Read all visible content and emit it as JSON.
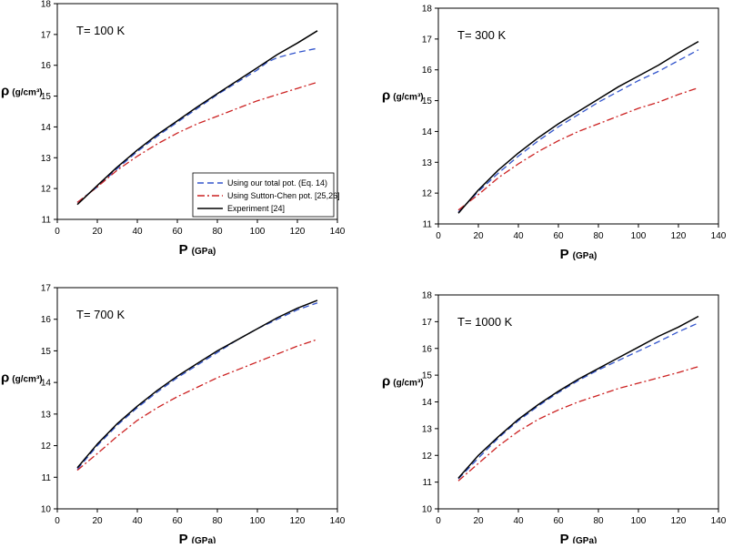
{
  "figure": {
    "legend": {
      "entries": [
        {
          "label": "Using our total pot. (Eq. 14)",
          "series": "ours"
        },
        {
          "label": "Using Sutton-Chen pot. [25,26]",
          "series": "sc"
        },
        {
          "label": "Experiment [24]",
          "series": "exp"
        }
      ]
    },
    "styles": {
      "ours": {
        "color": "#3355cc",
        "dash": "7,4"
      },
      "sc": {
        "color": "#cc2222",
        "dash": "8,3,2,3"
      },
      "exp": {
        "color": "#000000",
        "dash": ""
      }
    }
  },
  "chart_data": [
    {
      "type": "line",
      "panel_label": "T= 100 K",
      "xlabel": "P",
      "xlabel_unit": "(GPa)",
      "ylabel": "ρ",
      "ylabel_unit": "(g/cm³)",
      "xlim": [
        0,
        140
      ],
      "ylim": [
        11,
        18
      ],
      "xticks": [
        0,
        20,
        40,
        60,
        80,
        100,
        120,
        140
      ],
      "yticks": [
        11,
        12,
        13,
        14,
        15,
        16,
        17,
        18
      ],
      "has_legend": true,
      "series": [
        {
          "key": "ours",
          "name": "Using our total pot. (Eq. 14)",
          "x": [
            10,
            20,
            30,
            40,
            50,
            60,
            70,
            80,
            90,
            100,
            105,
            110,
            120,
            130
          ],
          "y": [
            11.55,
            12.05,
            12.65,
            13.2,
            13.7,
            14.15,
            14.6,
            15.05,
            15.45,
            15.85,
            16.1,
            16.25,
            16.42,
            16.55
          ]
        },
        {
          "key": "sc",
          "name": "Using Sutton-Chen pot. [25,26]",
          "x": [
            10,
            20,
            30,
            40,
            50,
            60,
            70,
            80,
            90,
            100,
            110,
            120,
            130
          ],
          "y": [
            11.55,
            12.05,
            12.6,
            13.05,
            13.45,
            13.8,
            14.1,
            14.35,
            14.6,
            14.85,
            15.05,
            15.25,
            15.45
          ]
        },
        {
          "key": "exp",
          "name": "Experiment [24]",
          "x": [
            10,
            20,
            30,
            40,
            50,
            60,
            70,
            80,
            90,
            100,
            110,
            120,
            130
          ],
          "y": [
            11.48,
            12.1,
            12.7,
            13.25,
            13.75,
            14.2,
            14.65,
            15.08,
            15.5,
            15.92,
            16.35,
            16.72,
            17.12
          ]
        }
      ]
    },
    {
      "type": "line",
      "panel_label": "T= 300 K",
      "xlabel": "P",
      "xlabel_unit": "(GPa)",
      "ylabel": "ρ",
      "ylabel_unit": "(g/cm³)",
      "xlim": [
        0,
        140
      ],
      "ylim": [
        11,
        18
      ],
      "xticks": [
        0,
        20,
        40,
        60,
        80,
        100,
        120,
        140
      ],
      "yticks": [
        11,
        12,
        13,
        14,
        15,
        16,
        17,
        18
      ],
      "has_legend": false,
      "series": [
        {
          "key": "ours",
          "name": "Using our total pot. (Eq. 14)",
          "x": [
            10,
            20,
            30,
            40,
            50,
            60,
            70,
            80,
            90,
            100,
            110,
            120,
            130
          ],
          "y": [
            11.38,
            12.05,
            12.65,
            13.2,
            13.7,
            14.15,
            14.55,
            14.95,
            15.3,
            15.65,
            15.95,
            16.3,
            16.65
          ]
        },
        {
          "key": "sc",
          "name": "Using Sutton-Chen pot. [25,26]",
          "x": [
            10,
            20,
            30,
            40,
            50,
            60,
            70,
            80,
            90,
            100,
            110,
            120,
            130
          ],
          "y": [
            11.45,
            11.95,
            12.5,
            12.95,
            13.35,
            13.7,
            14.0,
            14.25,
            14.5,
            14.75,
            14.95,
            15.2,
            15.42
          ]
        },
        {
          "key": "exp",
          "name": "Experiment [24]",
          "x": [
            10,
            20,
            30,
            40,
            50,
            60,
            70,
            80,
            90,
            100,
            110,
            120,
            130
          ],
          "y": [
            11.35,
            12.1,
            12.75,
            13.3,
            13.8,
            14.25,
            14.65,
            15.05,
            15.45,
            15.8,
            16.15,
            16.55,
            16.92
          ]
        }
      ]
    },
    {
      "type": "line",
      "panel_label": "T= 700 K",
      "xlabel": "P",
      "xlabel_unit": "(GPa)",
      "ylabel": "ρ",
      "ylabel_unit": "(g/cm³)",
      "xlim": [
        0,
        140
      ],
      "ylim": [
        10,
        17
      ],
      "xticks": [
        0,
        20,
        40,
        60,
        80,
        100,
        120,
        140
      ],
      "yticks": [
        10,
        11,
        12,
        13,
        14,
        15,
        16,
        17
      ],
      "has_legend": false,
      "series": [
        {
          "key": "ours",
          "name": "Using our total pot. (Eq. 14)",
          "x": [
            10,
            20,
            30,
            40,
            50,
            60,
            70,
            80,
            90,
            100,
            110,
            120,
            130
          ],
          "y": [
            11.25,
            12.0,
            12.65,
            13.2,
            13.7,
            14.15,
            14.55,
            14.95,
            15.35,
            15.7,
            16.0,
            16.3,
            16.52
          ]
        },
        {
          "key": "sc",
          "name": "Using Sutton-Chen pot. [25,26]",
          "x": [
            10,
            20,
            30,
            40,
            50,
            60,
            70,
            80,
            90,
            100,
            110,
            120,
            130
          ],
          "y": [
            11.22,
            11.75,
            12.3,
            12.8,
            13.2,
            13.55,
            13.85,
            14.15,
            14.4,
            14.65,
            14.9,
            15.15,
            15.36
          ]
        },
        {
          "key": "exp",
          "name": "Experiment [24]",
          "x": [
            10,
            20,
            30,
            40,
            50,
            60,
            70,
            80,
            90,
            100,
            110,
            120,
            130
          ],
          "y": [
            11.3,
            12.05,
            12.7,
            13.25,
            13.75,
            14.2,
            14.6,
            15.0,
            15.35,
            15.7,
            16.05,
            16.35,
            16.6
          ]
        }
      ]
    },
    {
      "type": "line",
      "panel_label": "T= 1000 K",
      "xlabel": "P",
      "xlabel_unit": "(GPa)",
      "ylabel": "ρ",
      "ylabel_unit": "(g/cm³)",
      "xlim": [
        0,
        140
      ],
      "ylim": [
        10,
        18
      ],
      "xticks": [
        0,
        20,
        40,
        60,
        80,
        100,
        120,
        140
      ],
      "yticks": [
        10,
        11,
        12,
        13,
        14,
        15,
        16,
        17,
        18
      ],
      "has_legend": false,
      "series": [
        {
          "key": "ours",
          "name": "Using our total pot. (Eq. 14)",
          "x": [
            10,
            20,
            30,
            40,
            50,
            60,
            70,
            80,
            90,
            100,
            110,
            120,
            130
          ],
          "y": [
            11.12,
            11.9,
            12.65,
            13.3,
            13.85,
            14.35,
            14.8,
            15.2,
            15.55,
            15.9,
            16.25,
            16.62,
            16.95
          ]
        },
        {
          "key": "sc",
          "name": "Using Sutton-Chen pot. [25,26]",
          "x": [
            10,
            20,
            30,
            40,
            50,
            60,
            70,
            80,
            90,
            100,
            110,
            120,
            130
          ],
          "y": [
            11.05,
            11.7,
            12.35,
            12.9,
            13.35,
            13.7,
            14.0,
            14.25,
            14.5,
            14.7,
            14.9,
            15.1,
            15.32
          ]
        },
        {
          "key": "exp",
          "name": "Experiment [24]",
          "x": [
            10,
            20,
            30,
            40,
            50,
            60,
            70,
            80,
            90,
            100,
            110,
            120,
            130
          ],
          "y": [
            11.15,
            12.0,
            12.7,
            13.35,
            13.9,
            14.4,
            14.85,
            15.25,
            15.65,
            16.05,
            16.45,
            16.8,
            17.2
          ]
        }
      ]
    }
  ]
}
